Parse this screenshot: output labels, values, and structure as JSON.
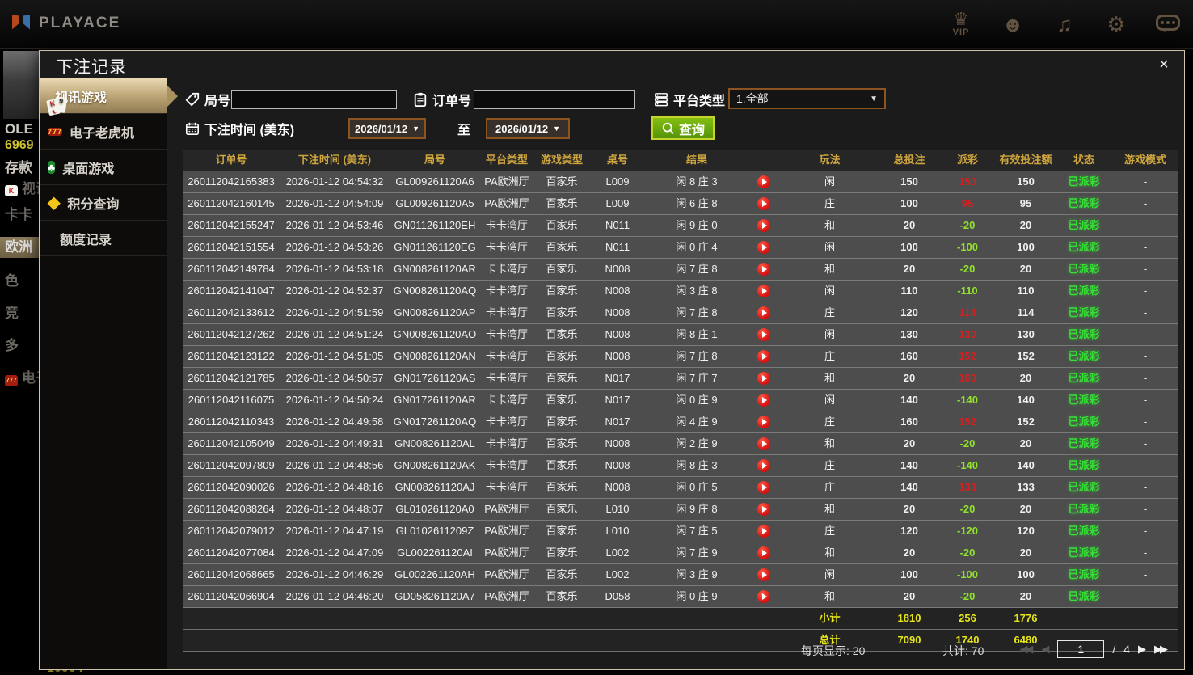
{
  "topbar": {
    "brand": "PLAYACE",
    "icons": [
      {
        "name": "vip-icon",
        "glyph": "♛",
        "label": "VIP"
      },
      {
        "name": "support-icon",
        "glyph": "☻",
        "label": ""
      },
      {
        "name": "music-icon",
        "glyph": "♫",
        "label": ""
      },
      {
        "name": "settings-icon",
        "glyph": "⚙",
        "label": ""
      },
      {
        "name": "chat-icon",
        "glyph": "",
        "label": ""
      }
    ]
  },
  "background": {
    "left_nav": [
      {
        "label": "OLE",
        "style": "bright"
      },
      {
        "label": "6969",
        "style": "money"
      },
      {
        "label": "存款",
        "style": "bright"
      },
      {
        "label": "视讯游戏",
        "style": "card"
      },
      {
        "label": "卡卡",
        "style": ""
      },
      {
        "label": "欧洲",
        "style": "hl"
      },
      {
        "label": "色",
        "style": ""
      },
      {
        "label": "竞",
        "style": ""
      },
      {
        "label": "多",
        "style": ""
      },
      {
        "label": "电子",
        "style": "red7"
      }
    ],
    "bottom_left_number": "10004"
  },
  "modal": {
    "title": "下注记录",
    "close": "×",
    "sidebar": [
      {
        "label": "视讯游戏",
        "icon": "video-games-cards-icon",
        "active": true
      },
      {
        "label": "电子老虎机",
        "icon": "slots-777-icon",
        "active": false
      },
      {
        "label": "桌面游戏",
        "icon": "table-games-icon",
        "active": false
      },
      {
        "label": "积分查询",
        "icon": "points-gem-icon",
        "active": false
      },
      {
        "label": "额度记录",
        "icon": "quota-records-icon",
        "active": false
      }
    ],
    "filters": {
      "round_label": "局号",
      "round_value": "",
      "order_label": "订单号",
      "order_value": "",
      "platform_label": "平台类型",
      "platform_value": "1.全部",
      "time_label": "下注时间 (美东)",
      "date_from": "2026/01/12",
      "to_label": "至",
      "date_to": "2026/01/12",
      "search_label": "查询"
    },
    "table": {
      "headers": [
        "订单号",
        "下注时间 (美东)",
        "局号",
        "平台类型",
        "游戏类型",
        "桌号",
        "结果",
        "",
        "玩法",
        "总投注",
        "派彩",
        "有效投注额",
        "状态",
        "游戏模式"
      ],
      "rows": [
        {
          "order": "260112042165383",
          "time": "2026-01-12 04:54:32",
          "round": "GL009261120A6",
          "platform": "PA欧洲厅",
          "game": "百家乐",
          "table": "L009",
          "result": "闲 8 庄 3",
          "side": "闲",
          "bet": "150",
          "payout": "150",
          "valid": "150",
          "status": "已派彩",
          "mode": "-"
        },
        {
          "order": "260112042160145",
          "time": "2026-01-12 04:54:09",
          "round": "GL009261120A5",
          "platform": "PA欧洲厅",
          "game": "百家乐",
          "table": "L009",
          "result": "闲 6 庄 8",
          "side": "庄",
          "bet": "100",
          "payout": "95",
          "valid": "95",
          "status": "已派彩",
          "mode": "-"
        },
        {
          "order": "260112042155247",
          "time": "2026-01-12 04:53:46",
          "round": "GN011261120EH",
          "platform": "卡卡湾厅",
          "game": "百家乐",
          "table": "N011",
          "result": "闲 9 庄 0",
          "side": "和",
          "bet": "20",
          "payout": "-20",
          "valid": "20",
          "status": "已派彩",
          "mode": "-"
        },
        {
          "order": "260112042151554",
          "time": "2026-01-12 04:53:26",
          "round": "GN011261120EG",
          "platform": "卡卡湾厅",
          "game": "百家乐",
          "table": "N011",
          "result": "闲 0 庄 4",
          "side": "闲",
          "bet": "100",
          "payout": "-100",
          "valid": "100",
          "status": "已派彩",
          "mode": "-"
        },
        {
          "order": "260112042149784",
          "time": "2026-01-12 04:53:18",
          "round": "GN008261120AR",
          "platform": "卡卡湾厅",
          "game": "百家乐",
          "table": "N008",
          "result": "闲 7 庄 8",
          "side": "和",
          "bet": "20",
          "payout": "-20",
          "valid": "20",
          "status": "已派彩",
          "mode": "-"
        },
        {
          "order": "260112042141047",
          "time": "2026-01-12 04:52:37",
          "round": "GN008261120AQ",
          "platform": "卡卡湾厅",
          "game": "百家乐",
          "table": "N008",
          "result": "闲 3 庄 8",
          "side": "闲",
          "bet": "110",
          "payout": "-110",
          "valid": "110",
          "status": "已派彩",
          "mode": "-"
        },
        {
          "order": "260112042133612",
          "time": "2026-01-12 04:51:59",
          "round": "GN008261120AP",
          "platform": "卡卡湾厅",
          "game": "百家乐",
          "table": "N008",
          "result": "闲 7 庄 8",
          "side": "庄",
          "bet": "120",
          "payout": "114",
          "valid": "114",
          "status": "已派彩",
          "mode": "-"
        },
        {
          "order": "260112042127262",
          "time": "2026-01-12 04:51:24",
          "round": "GN008261120AO",
          "platform": "卡卡湾厅",
          "game": "百家乐",
          "table": "N008",
          "result": "闲 8 庄 1",
          "side": "闲",
          "bet": "130",
          "payout": "130",
          "valid": "130",
          "status": "已派彩",
          "mode": "-"
        },
        {
          "order": "260112042123122",
          "time": "2026-01-12 04:51:05",
          "round": "GN008261120AN",
          "platform": "卡卡湾厅",
          "game": "百家乐",
          "table": "N008",
          "result": "闲 7 庄 8",
          "side": "庄",
          "bet": "160",
          "payout": "152",
          "valid": "152",
          "status": "已派彩",
          "mode": "-"
        },
        {
          "order": "260112042121785",
          "time": "2026-01-12 04:50:57",
          "round": "GN017261120AS",
          "platform": "卡卡湾厅",
          "game": "百家乐",
          "table": "N017",
          "result": "闲 7 庄 7",
          "side": "和",
          "bet": "20",
          "payout": "160",
          "valid": "20",
          "status": "已派彩",
          "mode": "-"
        },
        {
          "order": "260112042116075",
          "time": "2026-01-12 04:50:24",
          "round": "GN017261120AR",
          "platform": "卡卡湾厅",
          "game": "百家乐",
          "table": "N017",
          "result": "闲 0 庄 9",
          "side": "闲",
          "bet": "140",
          "payout": "-140",
          "valid": "140",
          "status": "已派彩",
          "mode": "-"
        },
        {
          "order": "260112042110343",
          "time": "2026-01-12 04:49:58",
          "round": "GN017261120AQ",
          "platform": "卡卡湾厅",
          "game": "百家乐",
          "table": "N017",
          "result": "闲 4 庄 9",
          "side": "庄",
          "bet": "160",
          "payout": "152",
          "valid": "152",
          "status": "已派彩",
          "mode": "-"
        },
        {
          "order": "260112042105049",
          "time": "2026-01-12 04:49:31",
          "round": "GN008261120AL",
          "platform": "卡卡湾厅",
          "game": "百家乐",
          "table": "N008",
          "result": "闲 2 庄 9",
          "side": "和",
          "bet": "20",
          "payout": "-20",
          "valid": "20",
          "status": "已派彩",
          "mode": "-"
        },
        {
          "order": "260112042097809",
          "time": "2026-01-12 04:48:56",
          "round": "GN008261120AK",
          "platform": "卡卡湾厅",
          "game": "百家乐",
          "table": "N008",
          "result": "闲 8 庄 3",
          "side": "庄",
          "bet": "140",
          "payout": "-140",
          "valid": "140",
          "status": "已派彩",
          "mode": "-"
        },
        {
          "order": "260112042090026",
          "time": "2026-01-12 04:48:16",
          "round": "GN008261120AJ",
          "platform": "卡卡湾厅",
          "game": "百家乐",
          "table": "N008",
          "result": "闲 0 庄 5",
          "side": "庄",
          "bet": "140",
          "payout": "133",
          "valid": "133",
          "status": "已派彩",
          "mode": "-"
        },
        {
          "order": "260112042088264",
          "time": "2026-01-12 04:48:07",
          "round": "GL010261120A0",
          "platform": "PA欧洲厅",
          "game": "百家乐",
          "table": "L010",
          "result": "闲 9 庄 8",
          "side": "和",
          "bet": "20",
          "payout": "-20",
          "valid": "20",
          "status": "已派彩",
          "mode": "-"
        },
        {
          "order": "260112042079012",
          "time": "2026-01-12 04:47:19",
          "round": "GL0102611209Z",
          "platform": "PA欧洲厅",
          "game": "百家乐",
          "table": "L010",
          "result": "闲 7 庄 5",
          "side": "庄",
          "bet": "120",
          "payout": "-120",
          "valid": "120",
          "status": "已派彩",
          "mode": "-"
        },
        {
          "order": "260112042077084",
          "time": "2026-01-12 04:47:09",
          "round": "GL002261120AI",
          "platform": "PA欧洲厅",
          "game": "百家乐",
          "table": "L002",
          "result": "闲 7 庄 9",
          "side": "和",
          "bet": "20",
          "payout": "-20",
          "valid": "20",
          "status": "已派彩",
          "mode": "-"
        },
        {
          "order": "260112042068665",
          "time": "2026-01-12 04:46:29",
          "round": "GL002261120AH",
          "platform": "PA欧洲厅",
          "game": "百家乐",
          "table": "L002",
          "result": "闲 3 庄 9",
          "side": "闲",
          "bet": "100",
          "payout": "-100",
          "valid": "100",
          "status": "已派彩",
          "mode": "-"
        },
        {
          "order": "260112042066904",
          "time": "2026-01-12 04:46:20",
          "round": "GD058261120A7",
          "platform": "PA欧洲厅",
          "game": "百家乐",
          "table": "D058",
          "result": "闲 0 庄 9",
          "side": "和",
          "bet": "20",
          "payout": "-20",
          "valid": "20",
          "status": "已派彩",
          "mode": "-"
        }
      ],
      "subtotal": {
        "label": "小计",
        "bet": "1810",
        "payout": "256",
        "valid": "1776"
      },
      "grand_total": {
        "label": "总计",
        "bet": "7090",
        "payout": "1740",
        "valid": "6480"
      }
    },
    "pagination": {
      "per_page_label": "每页显示:",
      "per_page": "20",
      "total_label": "共计:",
      "total": "70",
      "page": "1",
      "page_sep": "/",
      "pages": "4"
    }
  },
  "colors": {
    "accent_gold": "#cfa63e",
    "win_red": "#d42020",
    "loss_green": "#8fe32c",
    "status_green": "#35e035",
    "totals_yellow": "#e6e619",
    "search_green": "#6aab0e",
    "active_tab_tan": "#bda677"
  }
}
